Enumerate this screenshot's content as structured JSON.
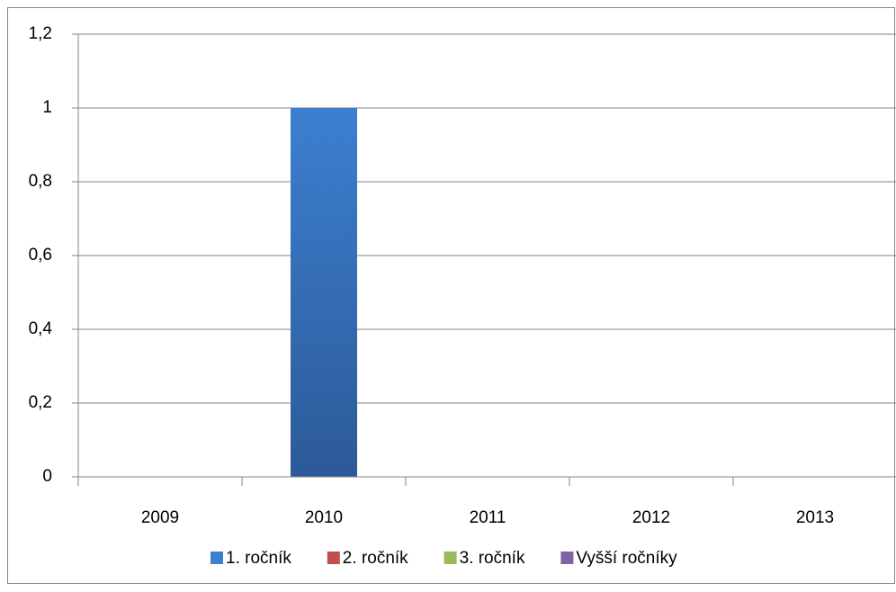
{
  "chart_data": {
    "type": "bar",
    "categories": [
      "2009",
      "2010",
      "2011",
      "2012",
      "2013"
    ],
    "series": [
      {
        "name": "1. ročník",
        "color": "#4f81bd",
        "values": [
          0,
          1,
          0,
          0,
          0
        ]
      },
      {
        "name": "2. ročník",
        "color": "#c0504d",
        "values": [
          0,
          0,
          0,
          0,
          0
        ]
      },
      {
        "name": "3. ročník",
        "color": "#9bbb59",
        "values": [
          0,
          0,
          0,
          0,
          0
        ]
      },
      {
        "name": "Vyšší ročníky",
        "color": "#8064a2",
        "values": [
          0,
          0,
          0,
          0,
          0
        ]
      }
    ],
    "ylim": [
      0,
      1.2
    ],
    "yticks": [
      0,
      {
        "value": 0.2,
        "label": "0,2"
      },
      {
        "value": 0.4,
        "label": "0,4"
      },
      {
        "value": 0.6,
        "label": "0,6"
      },
      {
        "value": 0.8,
        "label": "0,8"
      },
      1,
      {
        "value": 1.2,
        "label": "1,2"
      }
    ],
    "grid": true,
    "legend": "bottom"
  }
}
